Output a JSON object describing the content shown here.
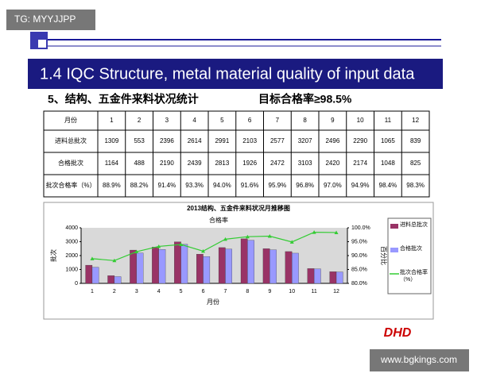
{
  "header": {
    "watermark": "TG: MYYJJPP",
    "title": "1.4  IQC Structure, metal material quality of input data",
    "section": "5、结构、五金件来料状况统计",
    "target": "目标合格率≥98.5%"
  },
  "table": {
    "rows": [
      [
        "月份",
        "1",
        "2",
        "3",
        "4",
        "5",
        "6",
        "7",
        "8",
        "9",
        "10",
        "11",
        "12"
      ],
      [
        "进料总批次",
        "1309",
        "553",
        "2396",
        "2614",
        "2991",
        "2103",
        "2577",
        "3207",
        "2496",
        "2290",
        "1065",
        "839"
      ],
      [
        "合格批次",
        "1164",
        "488",
        "2190",
        "2439",
        "2813",
        "1926",
        "2472",
        "3103",
        "2420",
        "2174",
        "1048",
        "825"
      ],
      [
        "批次合格率（%）",
        "88.9%",
        "88.2%",
        "91.4%",
        "93.3%",
        "94.0%",
        "91.6%",
        "95.9%",
        "96.8%",
        "97.0%",
        "94.9%",
        "98.4%",
        "98.3%"
      ]
    ]
  },
  "chart_data": {
    "type": "bar-line",
    "title": "2013结构、五金件来料状况月推移图",
    "subtitle": "合格率",
    "x_label": "月份",
    "y_label": "批次",
    "y2_label": "百分比",
    "categories": [
      "1",
      "2",
      "3",
      "4",
      "5",
      "6",
      "7",
      "8",
      "9",
      "10",
      "11",
      "12"
    ],
    "series": [
      {
        "name": "进料总批次",
        "color": "#993366",
        "values": [
          1309,
          553,
          2396,
          2614,
          2991,
          2103,
          2577,
          3207,
          2496,
          2290,
          1065,
          839
        ]
      },
      {
        "name": "合格批次",
        "color": "#9999ff",
        "values": [
          1164,
          488,
          2190,
          2439,
          2813,
          1926,
          2472,
          3103,
          2420,
          2174,
          1048,
          825
        ]
      },
      {
        "name": "批次合格率（%）",
        "color": "#33cc33",
        "axis": "y2",
        "values": [
          88.9,
          88.2,
          91.4,
          93.3,
          94.0,
          91.6,
          95.9,
          96.8,
          97.0,
          94.9,
          98.4,
          98.3
        ]
      }
    ],
    "ylim": [
      0,
      4000
    ],
    "yticks": [
      0,
      1000,
      2000,
      3000,
      4000
    ],
    "y2lim": [
      80,
      100
    ],
    "y2ticks": [
      {
        "value": 80,
        "label": "80.0%"
      },
      {
        "value": 85,
        "label": "85.0%"
      },
      {
        "value": 90,
        "label": "90.0%"
      },
      {
        "value": 95,
        "label": "95.0%"
      },
      {
        "value": 100,
        "label": "100.0%"
      }
    ]
  },
  "footer": {
    "watermark": "www.bgkings.com",
    "logo": "DHD"
  }
}
